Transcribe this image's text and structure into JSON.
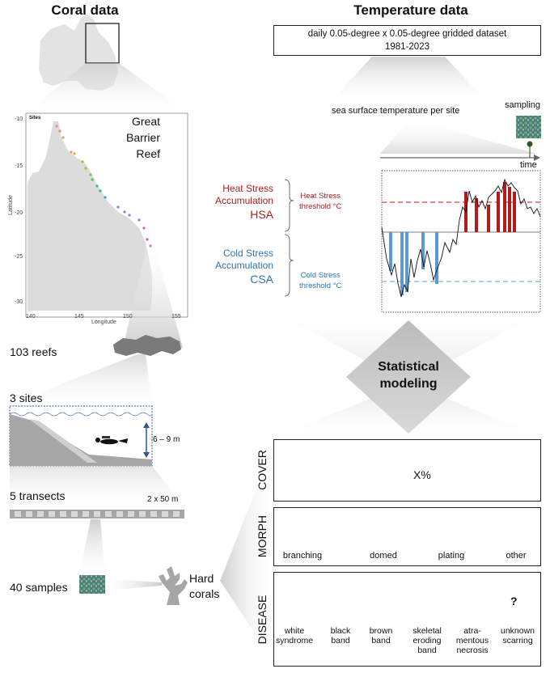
{
  "coral": {
    "header": "Coral data",
    "map_title": "Sites",
    "map_label": [
      "Great",
      "Barrier",
      "Reef"
    ],
    "lat_ticks": [
      "-10",
      "-15",
      "-20",
      "-25",
      "-30"
    ],
    "lon_ticks": [
      "140",
      "145",
      "150",
      "155"
    ],
    "xlabel": "Longitude",
    "ylabel": "Latitude",
    "reefs": "103 reefs",
    "sites": "3 sites",
    "depth": "6 – 9 m",
    "transects": "5 transects",
    "transect_size": "2 x 50 m",
    "samples": "40 samples",
    "hard_corals": [
      "Hard",
      "corals"
    ]
  },
  "temperature": {
    "header": "Temperature data",
    "dataset_line1": "daily 0.05-degree x 0.05-degree gridded dataset",
    "dataset_line2": "1981-2023",
    "sst": "sea surface temperature per site",
    "sampling": "sampling",
    "time": "time",
    "hsa_line1": "Heat Stress",
    "hsa_line2": "Accumulation",
    "hsa_abbr": "HSA",
    "heat_threshold_line1": "Heat Stress",
    "heat_threshold_line2": "threshold °C",
    "csa_line1": "Cold Stress",
    "csa_line2": "Accumulation",
    "csa_abbr": "CSA",
    "cold_threshold_line1": "Cold Stress",
    "cold_threshold_line2": "threshold °C"
  },
  "model": {
    "line1": "Statistical",
    "line2": "modeling"
  },
  "cover": {
    "title": "COVER",
    "value": "X%"
  },
  "morph": {
    "title": "MORPH",
    "items": [
      "branching",
      "domed",
      "plating",
      "other"
    ]
  },
  "disease": {
    "title": "DISEASE",
    "items": [
      [
        "white",
        "syndrome"
      ],
      [
        "black",
        "band"
      ],
      [
        "brown",
        "band"
      ],
      [
        "skeletal",
        "eroding",
        "band"
      ],
      [
        "atra-",
        "mentous",
        "necrosis"
      ],
      [
        "unknown",
        "scarring"
      ]
    ]
  },
  "colors": {
    "heat": "#b01c1c",
    "cold": "#3d85c6",
    "coral_grey": "#a6a6a6"
  }
}
